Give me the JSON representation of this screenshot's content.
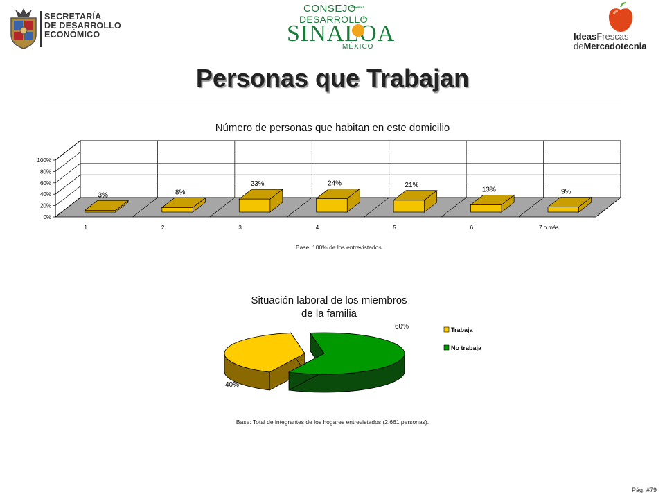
{
  "header": {
    "left_logo_text": [
      "SECRETARÍA",
      "DE DESARROLLO",
      "ECONÓMICO"
    ],
    "center_logo": {
      "line1": "CONSEJO",
      "line1_small": "PARA EL",
      "line2": "DESARROLLO",
      "line2_small": "DE",
      "line3": "SINALOA",
      "line4": "MÉXICO"
    },
    "right_logo": {
      "line1_bold": "Ideas",
      "line1_light": "Frescas",
      "line2_light": "de",
      "line2_bold": "Mercadotecnia"
    }
  },
  "page_title": "Personas que Trabajan",
  "page_number": "Pág. #79",
  "chart_data": [
    {
      "type": "bar",
      "title": "Número de personas que habitan en este domicilio",
      "categories": [
        "1",
        "2",
        "3",
        "4",
        "5",
        "6",
        "7 o más"
      ],
      "values": [
        3,
        8,
        23,
        24,
        21,
        13,
        9
      ],
      "value_labels": [
        "3%",
        "8%",
        "23%",
        "24%",
        "21%",
        "13%",
        "9%"
      ],
      "ylim": [
        0,
        100
      ],
      "yticks": [
        "0%",
        "20%",
        "40%",
        "60%",
        "80%",
        "100%"
      ],
      "grid": true,
      "colors": {
        "bar": "#f5c400",
        "bar_side": "#c89e00",
        "floor": "#a6a6a6"
      },
      "note": "Base: 100% de los entrevistados."
    },
    {
      "type": "pie",
      "title": [
        "Situación laboral de los miembros",
        "de la familia"
      ],
      "categories": [
        "Trabaja",
        "No trabaja"
      ],
      "values": [
        40,
        60
      ],
      "value_labels": [
        "40%",
        "60%"
      ],
      "colors": [
        "#ffcc00",
        "#009900"
      ],
      "legend_position": "right",
      "note": "Base: Total de integrantes de los hogares entrevistados (2,661 personas)."
    }
  ]
}
